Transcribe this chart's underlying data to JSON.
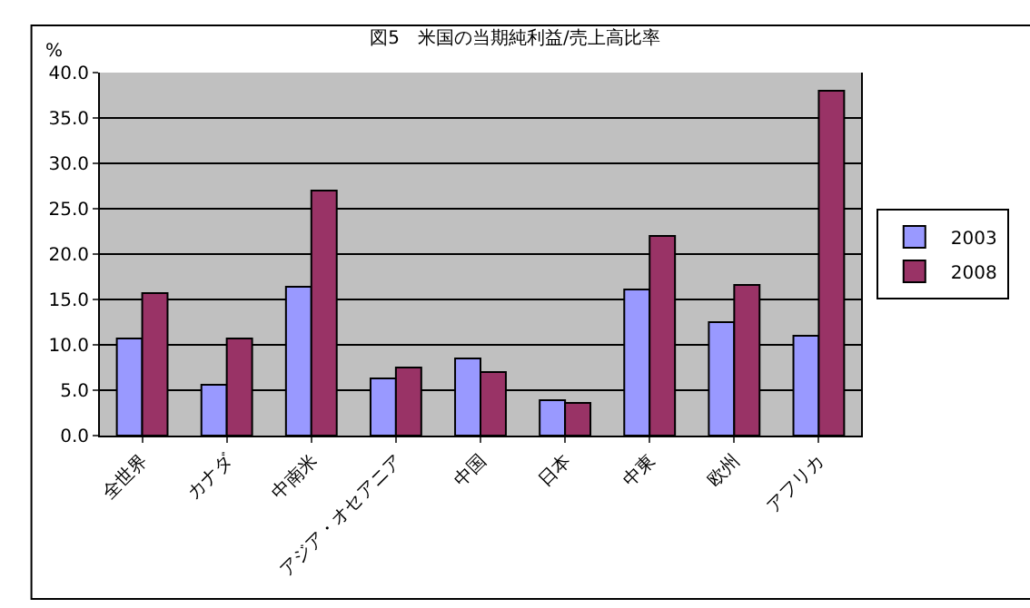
{
  "chart_data": {
    "type": "bar",
    "title": "図5　米国の当期純利益/売上高比率",
    "ylabel": "%",
    "categories": [
      "全世界",
      "カナダ",
      "中南米",
      "アジア・オセアニア",
      "中国",
      "日本",
      "中東",
      "欧州",
      "アフリカ"
    ],
    "series": [
      {
        "name": "2003",
        "color": "#9999ff",
        "values": [
          10.7,
          5.6,
          16.4,
          6.3,
          8.5,
          3.9,
          16.1,
          12.5,
          11.0
        ]
      },
      {
        "name": "2008",
        "color": "#993366",
        "values": [
          15.7,
          10.7,
          27.0,
          7.5,
          7.0,
          3.6,
          22.0,
          16.6,
          38.0
        ]
      }
    ],
    "ylim": [
      0,
      40
    ],
    "yticks": [
      {
        "value": 0,
        "label": "0.0"
      },
      {
        "value": 5,
        "label": "5.0"
      },
      {
        "value": 10,
        "label": "10.0"
      },
      {
        "value": 15,
        "label": "15.0"
      },
      {
        "value": 20,
        "label": "20.0"
      },
      {
        "value": 25,
        "label": "25.0"
      },
      {
        "value": 30,
        "label": "30.0"
      },
      {
        "value": 35,
        "label": "35.0"
      },
      {
        "value": 40,
        "label": "40.0"
      }
    ],
    "grid": "y",
    "legend": "right"
  }
}
